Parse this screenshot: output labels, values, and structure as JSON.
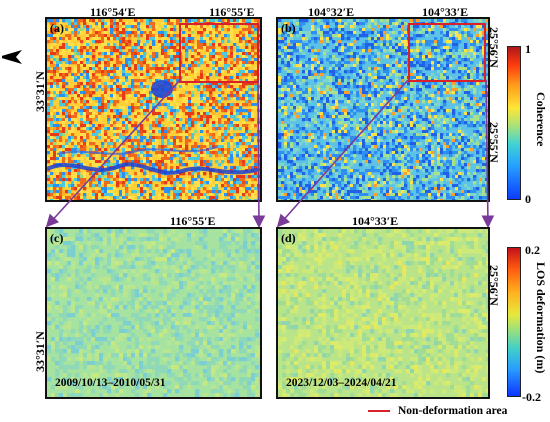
{
  "panels": {
    "a": {
      "label": "(a)",
      "top_coords": [
        "116°54′E",
        "116°55′E"
      ],
      "left_coord": "33°31′N"
    },
    "b": {
      "label": "(b)",
      "top_coords": [
        "104°32′E",
        "104°33′E"
      ],
      "right_coords": [
        "25°56′N",
        "25°55′N"
      ]
    },
    "c": {
      "label": "(c)",
      "top_coords": [
        "116°55′E"
      ],
      "left_coord": "33°31′N",
      "date_range": "2009/10/13–2010/05/31"
    },
    "d": {
      "label": "(d)",
      "top_coords": [
        "104°33′E"
      ],
      "right_coords": [
        "25°56′N"
      ],
      "date_range": "2023/12/03–2024/04/21"
    }
  },
  "coherence_colorbar": {
    "title": "Coherence",
    "max_label": "1",
    "min_label": "0",
    "range": [
      0,
      1
    ]
  },
  "deformation_colorbar": {
    "title": "LOS deformation (m)",
    "max_label": "0.2",
    "min_label": "-0.2",
    "range": [
      -0.2,
      0.2
    ]
  },
  "legend": {
    "label": "Non-deformation area",
    "color": "#d8212b"
  },
  "colors": {
    "arrow": "#7a3a9a",
    "box": "#d8212b"
  },
  "north_arrow": "N"
}
